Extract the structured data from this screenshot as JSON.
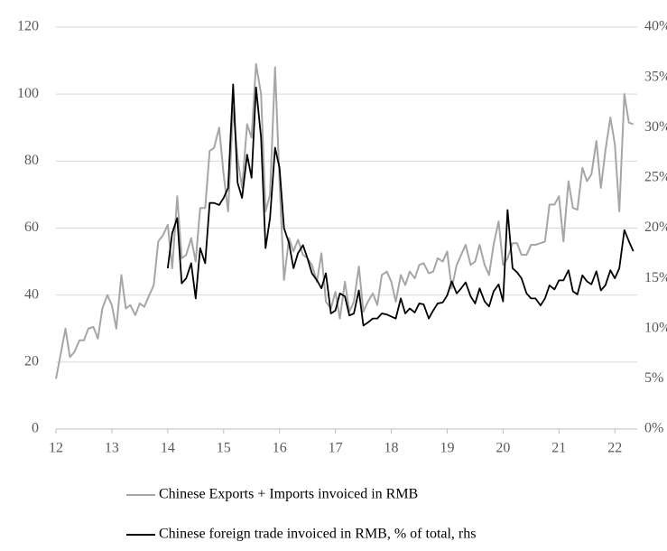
{
  "chart_data": {
    "type": "line",
    "x": [
      12,
      12.08,
      12.17,
      12.25,
      12.33,
      12.42,
      12.5,
      12.58,
      12.67,
      12.75,
      12.83,
      12.92,
      13,
      13.08,
      13.17,
      13.25,
      13.33,
      13.42,
      13.5,
      13.58,
      13.67,
      13.75,
      13.83,
      13.92,
      14,
      14.08,
      14.17,
      14.25,
      14.33,
      14.42,
      14.5,
      14.58,
      14.67,
      14.75,
      14.83,
      14.92,
      15,
      15.08,
      15.17,
      15.25,
      15.33,
      15.42,
      15.5,
      15.58,
      15.67,
      15.75,
      15.83,
      15.92,
      16,
      16.08,
      16.17,
      16.25,
      16.33,
      16.42,
      16.5,
      16.58,
      16.67,
      16.75,
      16.83,
      16.92,
      17,
      17.08,
      17.17,
      17.25,
      17.33,
      17.42,
      17.5,
      17.58,
      17.67,
      17.75,
      17.83,
      17.92,
      18,
      18.08,
      18.17,
      18.25,
      18.33,
      18.42,
      18.5,
      18.58,
      18.67,
      18.75,
      18.83,
      18.92,
      19,
      19.08,
      19.17,
      19.25,
      19.33,
      19.42,
      19.5,
      19.58,
      19.67,
      19.75,
      19.83,
      19.92,
      20,
      20.08,
      20.17,
      20.25,
      20.33,
      20.42,
      20.5,
      20.58,
      20.67,
      20.75,
      20.83,
      20.92,
      21,
      21.08,
      21.17,
      21.25,
      21.33,
      21.42,
      21.5,
      21.58,
      21.67,
      21.75,
      21.83,
      21.92,
      22,
      22.08,
      22.17,
      22.25,
      22.33
    ],
    "series": [
      {
        "name": "Chinese Exports + Imports invoiced in RMB",
        "color": "#a6a6a6",
        "values": [
          15,
          22,
          30,
          21.5,
          23,
          26.5,
          26.5,
          30,
          30.5,
          27,
          36,
          40,
          37,
          30,
          46,
          36,
          37,
          34,
          37.5,
          36.5,
          40,
          43,
          56,
          58,
          61,
          48,
          69.5,
          51,
          52,
          57,
          50,
          66,
          66,
          83,
          84,
          90,
          76,
          65,
          96,
          81,
          72,
          91,
          87,
          109,
          100,
          65,
          70,
          108,
          74,
          44.5,
          57,
          53,
          56.5,
          52,
          51,
          49,
          44,
          52.5,
          38,
          36,
          41,
          33,
          44,
          35,
          38,
          48.5,
          35,
          38,
          40.5,
          37,
          46,
          47,
          44,
          38,
          46,
          43,
          47,
          45,
          49,
          49.5,
          46.5,
          47,
          51,
          50,
          53,
          42,
          49,
          52,
          55,
          49,
          50,
          55,
          49,
          46,
          55,
          62,
          49,
          51,
          55.5,
          55.5,
          52,
          52,
          55,
          55,
          55.5,
          56,
          67,
          67,
          69.5,
          56,
          74,
          66,
          65.5,
          78,
          74,
          76,
          86,
          72,
          83,
          93,
          85,
          65,
          100,
          91.5,
          91
        ]
      },
      {
        "name": "Chinese foreign trade invoiced in RMB, % of total, rhs",
        "color": "#000000",
        "axis": "y2",
        "values": [
          null,
          null,
          null,
          null,
          null,
          null,
          null,
          null,
          null,
          null,
          null,
          null,
          null,
          null,
          null,
          null,
          null,
          null,
          null,
          null,
          null,
          null,
          null,
          null,
          16,
          19.5,
          21,
          14.5,
          15,
          16.5,
          13,
          18,
          16.5,
          22.5,
          22.5,
          22.3,
          23,
          24,
          34.3,
          24.5,
          23,
          27.3,
          25,
          34,
          29,
          18,
          21,
          28,
          26,
          20,
          18.5,
          16,
          17.5,
          18.3,
          17,
          15.5,
          14.8,
          14,
          15.5,
          11.5,
          11.8,
          13.5,
          13.2,
          11.3,
          11.5,
          13.8,
          10.3,
          10.6,
          11,
          11,
          11.5,
          11.4,
          11.2,
          11,
          13,
          11.5,
          12,
          11.6,
          12.5,
          12.4,
          11,
          11.8,
          12.5,
          12.6,
          13.3,
          14.7,
          13.5,
          14,
          14.6,
          13.2,
          12.5,
          14,
          12.7,
          12.2,
          13.7,
          14.4,
          12.7,
          21.8,
          16,
          15.6,
          15,
          13.5,
          13,
          13,
          12.3,
          13,
          14.3,
          13.9,
          14.8,
          14.8,
          15.8,
          13.7,
          13.4,
          15.3,
          14.7,
          14.4,
          15.7,
          13.8,
          14.3,
          15.8,
          15,
          16,
          19.8,
          18.7,
          17.7
        ]
      }
    ],
    "xlim": [
      12,
      22.4
    ],
    "xticks": [
      12,
      13,
      14,
      15,
      16,
      17,
      18,
      19,
      20,
      21,
      22
    ],
    "ylim": [
      0,
      120
    ],
    "yticks": [
      0,
      20,
      40,
      60,
      80,
      100,
      120
    ],
    "y2lim": [
      0,
      40
    ],
    "y2ticks": [
      {
        "value": 0,
        "label": "0%"
      },
      {
        "value": 5,
        "label": "5%"
      },
      {
        "value": 10,
        "label": "10%"
      },
      {
        "value": 15,
        "label": "15%"
      },
      {
        "value": 20,
        "label": "20%"
      },
      {
        "value": 25,
        "label": "25%"
      },
      {
        "value": 30,
        "label": "30%"
      },
      {
        "value": 35,
        "label": "35%"
      },
      {
        "value": 40,
        "label": "40%"
      }
    ],
    "grid": true
  }
}
